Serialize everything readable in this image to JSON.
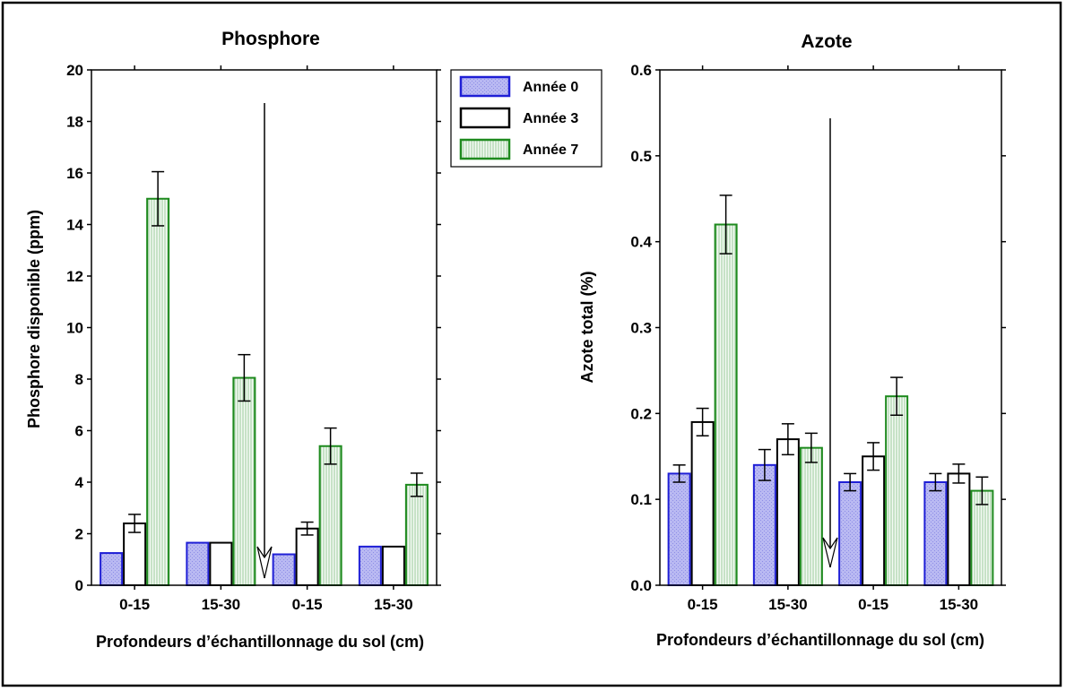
{
  "colors": {
    "annee0_fill": "#b9b9f2",
    "annee0_stroke": "#1f1fd6",
    "annee3_fill": "#ffffff",
    "annee3_stroke": "#000000",
    "annee7_fill": "#eaf5ea",
    "annee7_stroke": "#1e8a1e",
    "frame": "#000000"
  },
  "legend": {
    "items": [
      {
        "label": "Année 0",
        "style": "annee0"
      },
      {
        "label": "Année 3",
        "style": "annee3"
      },
      {
        "label": "Année 7",
        "style": "annee7"
      }
    ]
  },
  "chart_data": [
    {
      "type": "bar",
      "title": "Phosphore",
      "ylabel": "Phosphore disponible (ppm)",
      "xlabel": "Profondeurs d’échantillonnage du sol (cm)",
      "ylim": [
        0,
        20
      ],
      "yticks": [
        "0",
        "2",
        "4",
        "6",
        "8",
        "10",
        "12",
        "14",
        "16",
        "18",
        "20"
      ],
      "categories": [
        "0-15",
        "15-30",
        "0-15",
        "15-30"
      ],
      "series": [
        {
          "name": "Année 0",
          "values": [
            1.25,
            1.65,
            1.2,
            1.5
          ],
          "errors": [
            null,
            null,
            null,
            null
          ]
        },
        {
          "name": "Année 3",
          "values": [
            2.4,
            1.65,
            2.2,
            1.5
          ],
          "errors": [
            0.35,
            null,
            0.25,
            null
          ]
        },
        {
          "name": "Année 7",
          "values": [
            15.0,
            8.05,
            5.4,
            3.9
          ],
          "errors": [
            1.05,
            0.9,
            0.7,
            0.45
          ]
        }
      ],
      "separator_after_category": 1
    },
    {
      "type": "bar",
      "title": "Azote",
      "ylabel": "Azote total (%)",
      "xlabel": "Profondeurs d’échantillonnage du sol (cm)",
      "ylim": [
        0,
        0.6
      ],
      "yticks": [
        "0.0",
        "0.1",
        "0.2",
        "0.3",
        "0.4",
        "0.5",
        "0.6"
      ],
      "categories": [
        "0-15",
        "15-30",
        "0-15",
        "15-30"
      ],
      "series": [
        {
          "name": "Année 0",
          "values": [
            0.13,
            0.14,
            0.12,
            0.12
          ],
          "errors": [
            0.01,
            0.018,
            0.01,
            0.01
          ]
        },
        {
          "name": "Année 3",
          "values": [
            0.19,
            0.17,
            0.15,
            0.13
          ],
          "errors": [
            0.016,
            0.018,
            0.016,
            0.011
          ]
        },
        {
          "name": "Année 7",
          "values": [
            0.42,
            0.16,
            0.22,
            0.11
          ],
          "errors": [
            0.034,
            0.017,
            0.022,
            0.016
          ]
        }
      ],
      "separator_after_category": 1
    }
  ]
}
